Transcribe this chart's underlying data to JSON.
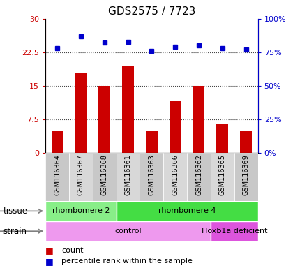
{
  "title": "GDS2575 / 7723",
  "samples": [
    "GSM116364",
    "GSM116367",
    "GSM116368",
    "GSM116361",
    "GSM116363",
    "GSM116366",
    "GSM116362",
    "GSM116365",
    "GSM116369"
  ],
  "counts": [
    5.0,
    18.0,
    15.0,
    19.5,
    5.0,
    11.5,
    15.0,
    6.5,
    5.0
  ],
  "percentiles": [
    78,
    87,
    82,
    83,
    76,
    79,
    80,
    78,
    77
  ],
  "ylim_left": [
    0,
    30
  ],
  "ylim_right": [
    0,
    100
  ],
  "yticks_left": [
    0,
    7.5,
    15,
    22.5,
    30
  ],
  "ytick_labels_left": [
    "0",
    "7.5",
    "15",
    "22.5",
    "30"
  ],
  "yticks_right": [
    0,
    25,
    50,
    75,
    100
  ],
  "ytick_labels_right": [
    "0%",
    "25%",
    "50%",
    "75%",
    "100%"
  ],
  "bar_color": "#cc0000",
  "dot_color": "#0000cc",
  "tissue_groups": [
    {
      "label": "rhombomere 2",
      "start": 0,
      "end": 3,
      "color": "#88ee88"
    },
    {
      "label": "rhombomere 4",
      "start": 3,
      "end": 9,
      "color": "#44dd44"
    }
  ],
  "strain_groups": [
    {
      "label": "control",
      "start": 0,
      "end": 7,
      "color": "#ee99ee"
    },
    {
      "label": "Hoxb1a deficient",
      "start": 7,
      "end": 9,
      "color": "#dd55dd"
    }
  ],
  "sample_bg_colors": [
    "#c8c8c8",
    "#d8d8d8"
  ],
  "hline_color": "#444444",
  "title_fontsize": 11,
  "bar_width": 0.5
}
